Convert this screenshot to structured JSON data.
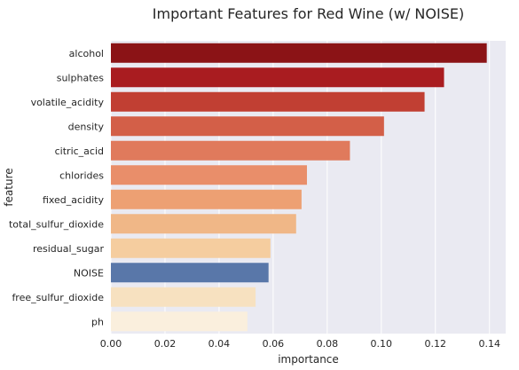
{
  "chart_data": {
    "type": "bar",
    "orientation": "horizontal",
    "title": "Important Features for Red Wine (w/ NOISE)",
    "xlabel": "importance",
    "ylabel": "feature",
    "xlim": [
      0,
      0.146
    ],
    "xticks": [
      0.0,
      0.02,
      0.04,
      0.06,
      0.08,
      0.1,
      0.12,
      0.14
    ],
    "xtick_labels": [
      "0.00",
      "0.02",
      "0.04",
      "0.06",
      "0.08",
      "0.10",
      "0.12",
      "0.14"
    ],
    "grid": true,
    "background": "#eaeaf2",
    "categories": [
      "alcohol",
      "sulphates",
      "volatile_acidity",
      "density",
      "citric_acid",
      "chlorides",
      "fixed_acidity",
      "total_sulfur_dioxide",
      "residual_sugar",
      "NOISE",
      "free_sulfur_dioxide",
      "ph"
    ],
    "values": [
      0.139,
      0.1232,
      0.116,
      0.101,
      0.0884,
      0.0725,
      0.0705,
      0.0685,
      0.059,
      0.0583,
      0.0535,
      0.0505
    ],
    "colors": [
      "#8b1316",
      "#a91c20",
      "#c13f33",
      "#d35f48",
      "#e07a5c",
      "#e98e6a",
      "#eda073",
      "#f0b787",
      "#f5cd9f",
      "#5977a9",
      "#f7e1c0",
      "#faefdd"
    ]
  }
}
